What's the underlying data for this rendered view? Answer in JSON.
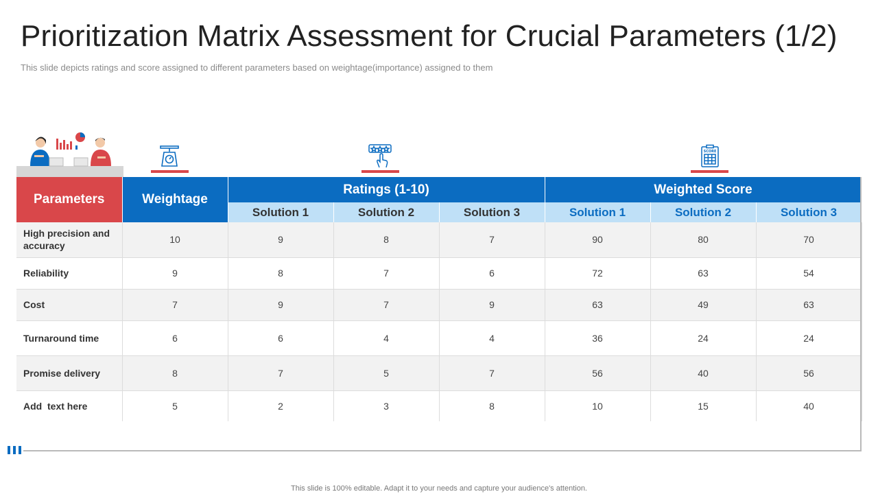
{
  "title": "Prioritization Matrix Assessment for Crucial Parameters (1/2)",
  "subtitle": "This slide depicts ratings and score assigned to different parameters based on weightage(importance) assigned to them",
  "icons": {
    "illustration": "business-people-meeting-illustration",
    "weightage": "weighing-scale-icon",
    "ratings": "rating-stars-hand-icon",
    "score": "score-clipboard-icon",
    "score_label": "SCORE"
  },
  "colors": {
    "red": "#d9474a",
    "blue": "#0b6cc1",
    "light_blue": "#bfe0f7",
    "row_shade": "#f2f2f2"
  },
  "table": {
    "headers": {
      "parameters": "Parameters",
      "weightage": "Weightage",
      "ratings": "Ratings (1-10)",
      "weighted_score": "Weighted Score",
      "ratings_sub": [
        "Solution 1",
        "Solution 2",
        "Solution 3"
      ],
      "score_sub": [
        "Solution 1",
        "Solution 2",
        "Solution 3"
      ]
    },
    "rows": [
      {
        "param": "High precision and accuracy",
        "weightage": "10",
        "r1": "9",
        "r2": "8",
        "r3": "7",
        "s1": "90",
        "s2": "80",
        "s3": "70"
      },
      {
        "param": "Reliability",
        "weightage": "9",
        "r1": "8",
        "r2": "7",
        "r3": "6",
        "s1": "72",
        "s2": "63",
        "s3": "54"
      },
      {
        "param": "Cost",
        "weightage": "7",
        "r1": "9",
        "r2": "7",
        "r3": "9",
        "s1": "63",
        "s2": "49",
        "s3": "63"
      },
      {
        "param": "Turnaround time",
        "weightage": "6",
        "r1": "6",
        "r2": "4",
        "r3": "4",
        "s1": "36",
        "s2": "24",
        "s3": "24"
      },
      {
        "param": "Promise delivery",
        "weightage": "8",
        "r1": "7",
        "r2": "5",
        "r3": "7",
        "s1": "56",
        "s2": "40",
        "s3": "56"
      },
      {
        "param": "Add  text here",
        "weightage": "5",
        "r1": "2",
        "r2": "3",
        "r3": "8",
        "s1": "10",
        "s2": "15",
        "s3": "40"
      }
    ]
  },
  "footer": "This slide is 100% editable. Adapt it to your needs and capture your audience's attention."
}
